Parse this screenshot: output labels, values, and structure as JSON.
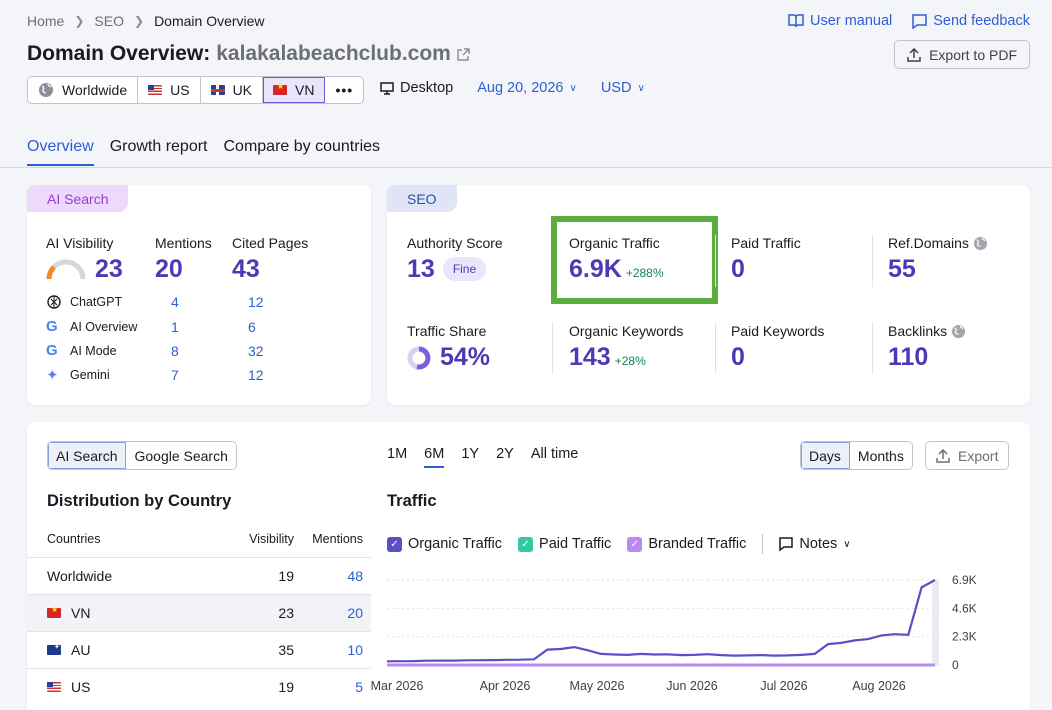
{
  "breadcrumb": [
    "Home",
    "SEO",
    "Domain Overview"
  ],
  "header": {
    "links": {
      "manual": "User manual",
      "feedback": "Send feedback"
    },
    "title_prefix": "Domain Overview:",
    "domain": "kalakalabeachclub.com",
    "export_pdf": "Export to PDF"
  },
  "db_tabs": [
    "Worldwide",
    "US",
    "UK",
    "VN"
  ],
  "db_active": "VN",
  "device": "Desktop",
  "date": "Aug 20, 2026",
  "currency": "USD",
  "main_tabs": [
    "Overview",
    "Growth report",
    "Compare by countries"
  ],
  "ai_search": {
    "pill": "AI Search",
    "visibility_label": "AI Visibility",
    "visibility": "23",
    "mentions_label": "Mentions",
    "mentions": "20",
    "cited_label": "Cited Pages",
    "cited": "43",
    "rows": [
      {
        "name": "ChatGPT",
        "mentions": "4",
        "cited": "12"
      },
      {
        "name": "AI Overview",
        "mentions": "1",
        "cited": "6"
      },
      {
        "name": "AI Mode",
        "mentions": "8",
        "cited": "32"
      },
      {
        "name": "Gemini",
        "mentions": "7",
        "cited": "12"
      }
    ]
  },
  "seo": {
    "pill": "SEO",
    "authority_label": "Authority Score",
    "authority": "13",
    "authority_badge": "Fine",
    "organic_traffic_label": "Organic Traffic",
    "organic_traffic": "6.9K",
    "organic_traffic_delta": "+288%",
    "paid_traffic_label": "Paid Traffic",
    "paid_traffic": "0",
    "ref_domains_label": "Ref.Domains",
    "ref_domains": "55",
    "traffic_share_label": "Traffic Share",
    "traffic_share": "54%",
    "organic_kw_label": "Organic Keywords",
    "organic_kw": "143",
    "organic_kw_delta": "+28%",
    "paid_kw_label": "Paid Keywords",
    "paid_kw": "0",
    "backlinks_label": "Backlinks",
    "backlinks": "110"
  },
  "bottom": {
    "search_toggle": [
      "AI Search",
      "Google Search"
    ],
    "periods": [
      "1M",
      "6M",
      "1Y",
      "2Y",
      "All time"
    ],
    "active_period": "6M",
    "granularity": [
      "Days",
      "Months"
    ],
    "export": "Export",
    "dist_title": "Distribution by Country",
    "traffic_title": "Traffic",
    "table_headers": {
      "country": "Countries",
      "visibility": "Visibility",
      "mentions": "Mentions"
    },
    "table_rows": [
      {
        "country": "Worldwide",
        "flag": "globe",
        "visibility": "19",
        "mentions": "48"
      },
      {
        "country": "VN",
        "flag": "vn",
        "visibility": "23",
        "mentions": "20"
      },
      {
        "country": "AU",
        "flag": "au",
        "visibility": "35",
        "mentions": "10"
      },
      {
        "country": "US",
        "flag": "us",
        "visibility": "19",
        "mentions": "5"
      }
    ],
    "legend": [
      "Organic Traffic",
      "Paid Traffic",
      "Branded Traffic"
    ],
    "notes": "Notes"
  },
  "colors": {
    "organic": "#5b4fc7",
    "paid": "#34c9a4",
    "branded": "#b98af0",
    "accent": "#2c5fd4",
    "highlight": "#5cad40"
  },
  "chart_data": {
    "type": "line",
    "x_ticks": [
      "Mar 2026",
      "Apr 2026",
      "May 2026",
      "Jun 2026",
      "Jul 2026",
      "Aug 2026"
    ],
    "y_ticks": [
      "6.9K",
      "4.6K",
      "2.3K",
      "0"
    ],
    "ylim": [
      0,
      6900
    ],
    "series": [
      {
        "name": "Organic Traffic",
        "values": [
          300,
          310,
          320,
          350,
          360,
          360,
          380,
          390,
          400,
          420,
          430,
          460,
          1250,
          1300,
          1450,
          1200,
          900,
          850,
          820,
          900,
          850,
          870,
          800,
          820,
          880,
          800,
          760,
          780,
          800,
          760,
          780,
          820,
          900,
          1700,
          1800,
          2000,
          2100,
          2400,
          2500,
          2450,
          6300,
          6900
        ]
      },
      {
        "name": "Branded Traffic",
        "values": [
          0,
          0,
          0,
          0,
          0,
          0,
          0,
          0,
          0,
          0,
          0,
          0,
          0,
          0,
          0,
          0,
          0,
          0,
          0,
          0,
          0,
          0,
          0,
          0,
          0,
          0,
          0,
          0,
          0,
          0,
          0,
          0,
          0,
          0,
          0,
          0,
          0,
          0,
          0,
          0,
          0,
          0
        ]
      }
    ]
  }
}
